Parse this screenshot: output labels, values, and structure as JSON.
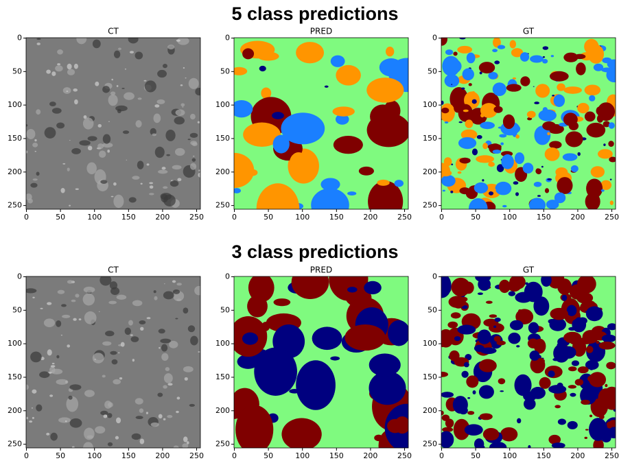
{
  "sections": [
    {
      "title": "5 class predictions",
      "panels": [
        {
          "title": "CT",
          "colors": [
            "#7b7b7b",
            "#3a3a3a",
            "#a8a8a8",
            "#d0d0d0"
          ],
          "xlim": [
            -0.5,
            255.5
          ],
          "ylim": [
            255.5,
            -0.5
          ],
          "xticks": [
            0,
            50,
            100,
            150,
            200,
            250
          ],
          "yticks": [
            0,
            50,
            100,
            150,
            200,
            250
          ]
        },
        {
          "title": "PRED",
          "colors": [
            "#7ffa7f",
            "#1a7fff",
            "#ff9500",
            "#7f0000",
            "#00007f"
          ],
          "xlim": [
            -0.5,
            255.5
          ],
          "ylim": [
            255.5,
            -0.5
          ],
          "xticks": [
            0,
            50,
            100,
            150,
            200,
            250
          ],
          "yticks": [
            0,
            50,
            100,
            150,
            200,
            250
          ]
        },
        {
          "title": "GT",
          "colors": [
            "#7ffa7f",
            "#1a7fff",
            "#ff9500",
            "#7f0000",
            "#00007f"
          ],
          "xlim": [
            -0.5,
            255.5
          ],
          "ylim": [
            255.5,
            -0.5
          ],
          "xticks": [
            0,
            50,
            100,
            150,
            200,
            250
          ],
          "yticks": [
            0,
            50,
            100,
            150,
            200,
            250
          ]
        }
      ]
    },
    {
      "title": "3 class predictions",
      "panels": [
        {
          "title": "CT",
          "colors": [
            "#7b7b7b",
            "#3a3a3a",
            "#a8a8a8",
            "#d0d0d0"
          ],
          "xlim": [
            -0.5,
            255.5
          ],
          "ylim": [
            255.5,
            -0.5
          ],
          "xticks": [
            0,
            50,
            100,
            150,
            200,
            250
          ],
          "yticks": [
            0,
            50,
            100,
            150,
            200,
            250
          ]
        },
        {
          "title": "PRED",
          "colors": [
            "#7ffa7f",
            "#7f0000",
            "#00007f"
          ],
          "xlim": [
            -0.5,
            255.5
          ],
          "ylim": [
            255.5,
            -0.5
          ],
          "xticks": [
            0,
            50,
            100,
            150,
            200,
            250
          ],
          "yticks": [
            0,
            50,
            100,
            150,
            200,
            250
          ]
        },
        {
          "title": "GT",
          "colors": [
            "#7ffa7f",
            "#7f0000",
            "#00007f"
          ],
          "xlim": [
            -0.5,
            255.5
          ],
          "ylim": [
            255.5,
            -0.5
          ],
          "xticks": [
            0,
            50,
            100,
            150,
            200,
            250
          ],
          "yticks": [
            0,
            50,
            100,
            150,
            200,
            250
          ]
        }
      ]
    }
  ]
}
